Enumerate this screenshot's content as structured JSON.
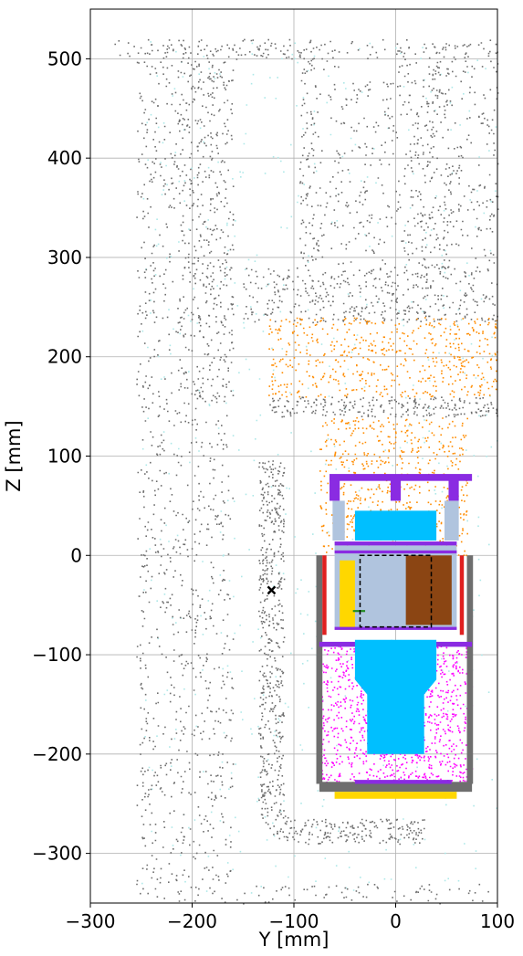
{
  "chart_data": {
    "type": "scatter",
    "title": "",
    "xlabel": "Y [mm]",
    "ylabel": "Z [mm]",
    "xlim": [
      -300,
      100
    ],
    "ylim": [
      -350,
      550
    ],
    "xticks": [
      -300,
      -200,
      -100,
      0,
      100
    ],
    "yticks": [
      -300,
      -200,
      -100,
      0,
      100,
      200,
      300,
      400,
      500
    ],
    "xtick_labels": [
      "−300",
      "−200",
      "−100",
      "0",
      "100"
    ],
    "ytick_labels": [
      "−300",
      "−200",
      "−100",
      "0",
      "100",
      "200",
      "300",
      "400",
      "500"
    ],
    "grid": true,
    "legend": "none",
    "colors": {
      "structure": "#6e6e6e",
      "scatter_orange": "#ff8c00",
      "magenta": "#ff00ff",
      "cyan": "#00bfff",
      "purple": "#8a2be2",
      "gold": "#ffd700",
      "brown": "#8b4513",
      "light_steel": "#b0c4de",
      "red": "#e02020",
      "green": "#228b22",
      "aqua_sparse": "#aee8e8"
    },
    "regions": [
      {
        "name": "outer-cavity-wall",
        "color": "structure",
        "y": [
          -255,
          100
        ],
        "z": [
          -350,
          520
        ],
        "density": "sparse"
      },
      {
        "name": "top-plate",
        "color": "structure",
        "y": [
          -280,
          100
        ],
        "z": [
          500,
          520
        ],
        "density": "sparse"
      },
      {
        "name": "inner-column-left",
        "color": "structure",
        "y": [
          -210,
          -160
        ],
        "z": [
          160,
          500
        ],
        "density": "sparse"
      },
      {
        "name": "inner-column-right",
        "color": "structure",
        "y": [
          -95,
          55
        ],
        "z": [
          290,
          500
        ],
        "density": "sparse"
      },
      {
        "name": "upper-flange",
        "color": "structure",
        "y": [
          -150,
          100
        ],
        "z": [
          235,
          290
        ],
        "density": "medium"
      },
      {
        "name": "lower-flange",
        "color": "structure",
        "y": [
          -125,
          100
        ],
        "z": [
          140,
          160
        ],
        "density": "dense"
      },
      {
        "name": "gap-orange-cloud",
        "color": "scatter_orange",
        "y": [
          -125,
          100
        ],
        "z": [
          160,
          240
        ],
        "density": "medium"
      },
      {
        "name": "detector-orange-cloud",
        "color": "scatter_orange",
        "y": [
          -75,
          70
        ],
        "z": [
          0,
          140
        ],
        "density": "medium"
      },
      {
        "name": "cable-duct",
        "color": "structure",
        "y": [
          -135,
          30
        ],
        "z": [
          -290,
          100
        ],
        "density": "dense"
      },
      {
        "name": "cryostat-magenta",
        "color": "magenta",
        "y": [
          -75,
          75
        ],
        "z": [
          -230,
          -90
        ],
        "density": "dense"
      },
      {
        "name": "cold-finger-cyan",
        "color": "cyan",
        "y": [
          -40,
          40
        ],
        "z": [
          -200,
          -85
        ],
        "density": "solid"
      },
      {
        "name": "crystal-holder-cyan",
        "color": "cyan",
        "y": [
          -40,
          40
        ],
        "z": [
          15,
          45
        ],
        "density": "solid"
      },
      {
        "name": "crystal-brown",
        "color": "brown",
        "y": [
          10,
          55
        ],
        "z": [
          -70,
          0
        ],
        "density": "solid"
      },
      {
        "name": "side-electronics-gold",
        "color": "gold",
        "y": [
          -55,
          -40
        ],
        "z": [
          -75,
          -5
        ],
        "density": "solid"
      },
      {
        "name": "base-plate-gold",
        "color": "gold",
        "y": [
          -60,
          60
        ],
        "z": [
          -245,
          -238
        ],
        "density": "solid"
      },
      {
        "name": "top-frame-purple",
        "color": "purple",
        "y": [
          -65,
          75
        ],
        "z": [
          75,
          82
        ],
        "density": "solid"
      }
    ],
    "annotations": [
      {
        "type": "x-marker",
        "y": -122,
        "z": -35
      },
      {
        "type": "dashed-box",
        "y": [
          -35,
          35
        ],
        "z": [
          -72,
          0
        ]
      }
    ]
  }
}
